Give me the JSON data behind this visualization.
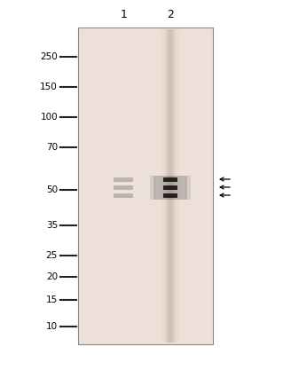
{
  "lane_labels": [
    "1",
    "2"
  ],
  "mw_markers": [
    250,
    150,
    100,
    70,
    50,
    35,
    25,
    20,
    15,
    10
  ],
  "panel_bg": "#ede0d8",
  "band_color": "#111111",
  "background_color": "#ffffff",
  "ladder_line_color": "#222222",
  "font_color": "#000000",
  "smear_color": "#c0a898"
}
